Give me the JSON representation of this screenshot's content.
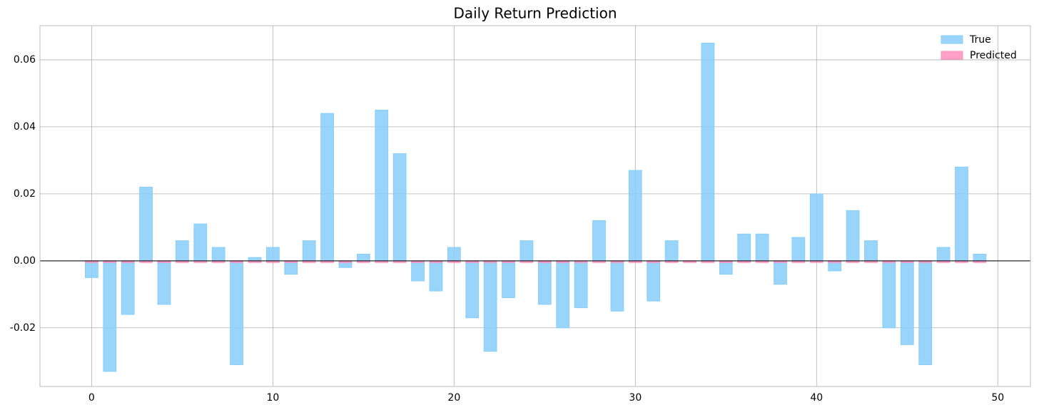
{
  "chart_data": {
    "type": "bar",
    "title": "Daily Return Prediction",
    "x": [
      0,
      1,
      2,
      3,
      4,
      5,
      6,
      7,
      8,
      9,
      10,
      11,
      12,
      13,
      14,
      15,
      16,
      17,
      18,
      19,
      20,
      21,
      22,
      23,
      24,
      25,
      26,
      27,
      28,
      29,
      30,
      31,
      32,
      33,
      34,
      35,
      36,
      37,
      38,
      39,
      40,
      41,
      42,
      43,
      44,
      45,
      46,
      47,
      48,
      49
    ],
    "series": [
      {
        "name": "True",
        "color": "#87cefa",
        "values": [
          -0.005,
          -0.033,
          -0.016,
          0.022,
          -0.013,
          0.006,
          0.011,
          0.004,
          -0.031,
          0.001,
          0.004,
          -0.004,
          0.006,
          0.044,
          -0.002,
          0.002,
          0.045,
          0.032,
          -0.006,
          -0.009,
          0.004,
          -0.017,
          -0.027,
          -0.011,
          0.006,
          -0.013,
          -0.02,
          -0.014,
          0.012,
          -0.015,
          0.027,
          -0.012,
          0.006,
          0,
          0.065,
          -0.004,
          0.008,
          0.008,
          -0.007,
          0.007,
          0.02,
          -0.003,
          0.015,
          0.006,
          -0.02,
          -0.025,
          -0.031,
          0.004,
          0.028,
          0.002
        ]
      },
      {
        "name": "Predicted",
        "color": "#ff8fbf",
        "values": [
          -0.0005,
          -0.0005,
          -0.0005,
          -0.0005,
          -0.0005,
          -0.0005,
          -0.0005,
          -0.0005,
          -0.0005,
          -0.0005,
          -0.0005,
          -0.0005,
          -0.0005,
          -0.0005,
          -0.0005,
          -0.0005,
          -0.0005,
          -0.0005,
          -0.0005,
          -0.0005,
          -0.0005,
          -0.0005,
          -0.0005,
          -0.0005,
          -0.0005,
          -0.0005,
          -0.0005,
          -0.0005,
          -0.0005,
          -0.0005,
          -0.0005,
          -0.0005,
          -0.0005,
          -0.0005,
          -0.0005,
          -0.0005,
          -0.0005,
          -0.0005,
          -0.0005,
          -0.0005,
          -0.0005,
          -0.0005,
          -0.0005,
          -0.0005,
          -0.0005,
          -0.0005,
          -0.0005,
          -0.0005,
          -0.0005,
          -0.0005
        ]
      }
    ],
    "xlim": [
      -2.85,
      51.8
    ],
    "xticks": [
      0,
      10,
      20,
      30,
      40,
      50
    ],
    "ylim": [
      -0.0375,
      0.0702
    ],
    "yticks": [
      {
        "value": -0.02,
        "label": "-0.02"
      },
      {
        "value": 0,
        "label": "0.00"
      },
      {
        "value": 0.02,
        "label": "0.02"
      },
      {
        "value": 0.04,
        "label": "0.04"
      },
      {
        "value": 0.06,
        "label": "0.06"
      }
    ],
    "grid": true,
    "legend": "upper right"
  }
}
